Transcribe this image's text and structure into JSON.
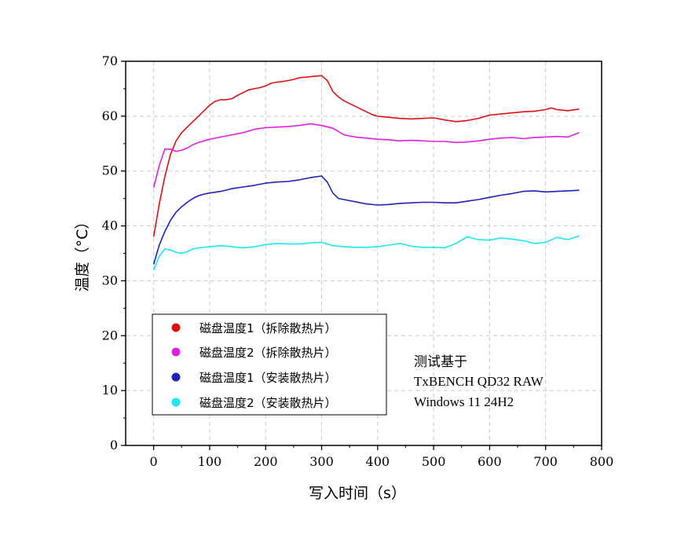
{
  "chart_data": {
    "type": "line",
    "title": "",
    "xlabel": "写入时间（s）",
    "ylabel": "温度（°C）",
    "xlim": [
      -50,
      800
    ],
    "ylim": [
      0,
      70
    ],
    "xticks": [
      0,
      100,
      200,
      300,
      400,
      500,
      600,
      700,
      800
    ],
    "yticks": [
      0,
      10,
      20,
      30,
      40,
      50,
      60,
      70
    ],
    "grid": true,
    "legend_position": "bottom-left",
    "series": [
      {
        "name": "磁盘温度1（拆除散热片）",
        "color": "#dd1111",
        "x": [
          0,
          10,
          20,
          30,
          40,
          50,
          60,
          70,
          80,
          90,
          100,
          110,
          120,
          130,
          140,
          150,
          160,
          170,
          180,
          190,
          200,
          210,
          220,
          230,
          240,
          250,
          260,
          270,
          280,
          290,
          300,
          310,
          320,
          330,
          340,
          350,
          360,
          370,
          380,
          390,
          400,
          420,
          440,
          460,
          480,
          500,
          520,
          540,
          560,
          580,
          600,
          620,
          640,
          660,
          680,
          700,
          710,
          720,
          740,
          760
        ],
        "y": [
          38,
          44,
          49,
          53,
          55.5,
          57,
          58,
          59,
          60,
          61,
          62,
          62.7,
          63,
          63,
          63.2,
          63.8,
          64.3,
          64.8,
          65,
          65.2,
          65.5,
          66,
          66.2,
          66.3,
          66.5,
          66.7,
          67,
          67.1,
          67.2,
          67.3,
          67.4,
          66.5,
          64.5,
          63.5,
          62.8,
          62.3,
          61.8,
          61.3,
          60.8,
          60.3,
          60.0,
          59.8,
          59.6,
          59.5,
          59.6,
          59.7,
          59.3,
          59.0,
          59.2,
          59.6,
          60.2,
          60.4,
          60.6,
          60.8,
          60.9,
          61.2,
          61.5,
          61.2,
          61.0,
          61.3
        ]
      },
      {
        "name": "磁盘温度2（拆除散热片）",
        "color": "#e020e0",
        "x": [
          0,
          10,
          20,
          30,
          40,
          50,
          60,
          70,
          80,
          90,
          100,
          120,
          140,
          160,
          180,
          200,
          220,
          240,
          260,
          280,
          300,
          320,
          340,
          360,
          380,
          400,
          420,
          440,
          460,
          480,
          500,
          520,
          540,
          560,
          580,
          600,
          620,
          640,
          660,
          680,
          700,
          720,
          740,
          760
        ],
        "y": [
          47,
          51,
          54,
          54,
          53.6,
          53.8,
          54.2,
          54.8,
          55.2,
          55.5,
          55.8,
          56.2,
          56.6,
          57.0,
          57.6,
          57.9,
          58.0,
          58.1,
          58.3,
          58.6,
          58.3,
          57.8,
          56.6,
          56.2,
          56.0,
          55.8,
          55.7,
          55.5,
          55.6,
          55.5,
          55.4,
          55.4,
          55.2,
          55.3,
          55.5,
          55.8,
          56.0,
          56.1,
          55.9,
          56.1,
          56.2,
          56.3,
          56.2,
          57.0
        ]
      },
      {
        "name": "磁盘温度1（安装散热片）",
        "color": "#1a22b8",
        "x": [
          0,
          10,
          20,
          30,
          40,
          50,
          60,
          70,
          80,
          90,
          100,
          120,
          140,
          160,
          180,
          200,
          220,
          240,
          260,
          280,
          300,
          310,
          320,
          330,
          340,
          360,
          380,
          400,
          420,
          440,
          460,
          480,
          500,
          520,
          540,
          560,
          580,
          600,
          620,
          640,
          660,
          680,
          700,
          720,
          740,
          760
        ],
        "y": [
          33,
          36.5,
          39,
          41,
          42.5,
          43.5,
          44.3,
          45,
          45.5,
          45.8,
          46,
          46.3,
          46.8,
          47.1,
          47.4,
          47.8,
          48.0,
          48.1,
          48.4,
          48.8,
          49.1,
          48.0,
          46.0,
          45.0,
          44.8,
          44.4,
          44.0,
          43.8,
          43.9,
          44.1,
          44.2,
          44.3,
          44.3,
          44.2,
          44.2,
          44.5,
          44.8,
          45.2,
          45.6,
          45.9,
          46.3,
          46.4,
          46.2,
          46.3,
          46.4,
          46.5
        ]
      },
      {
        "name": "磁盘温度2（安装散热片）",
        "color": "#18e8f0",
        "x": [
          0,
          10,
          20,
          30,
          40,
          50,
          60,
          70,
          80,
          90,
          100,
          120,
          140,
          160,
          180,
          200,
          220,
          240,
          260,
          280,
          300,
          320,
          340,
          360,
          380,
          400,
          420,
          440,
          460,
          480,
          500,
          520,
          540,
          560,
          580,
          600,
          620,
          640,
          660,
          680,
          700,
          720,
          740,
          760
        ],
        "y": [
          32,
          34.5,
          35.8,
          35.6,
          35.2,
          35.0,
          35.3,
          35.8,
          36.0,
          36.1,
          36.2,
          36.4,
          36.2,
          36.0,
          36.2,
          36.6,
          36.8,
          36.7,
          36.7,
          36.9,
          37.0,
          36.4,
          36.2,
          36.1,
          36.1,
          36.2,
          36.5,
          36.8,
          36.3,
          36.1,
          36.1,
          36.0,
          36.8,
          38.0,
          37.5,
          37.4,
          37.8,
          37.6,
          37.3,
          36.8,
          37.0,
          37.9,
          37.5,
          38.2
        ]
      }
    ],
    "annotation": {
      "lines": [
        "测试基于",
        "TxBENCH QD32 RAW",
        "Windows 11 24H2"
      ]
    }
  }
}
